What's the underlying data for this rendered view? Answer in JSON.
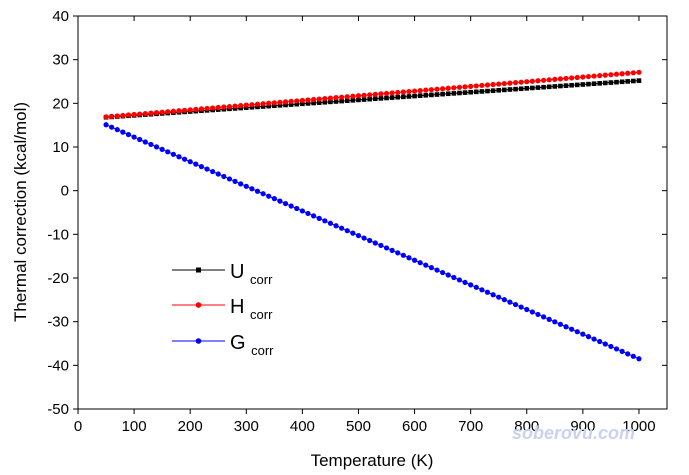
{
  "chart_data": {
    "type": "scatter",
    "title": "",
    "xlabel": "Temperature (K)",
    "ylabel": "Thermal correction (kcal/mol)",
    "xlim": [
      0,
      1050
    ],
    "ylim": [
      -50,
      40
    ],
    "x_ticks": [
      0,
      100,
      200,
      300,
      400,
      500,
      600,
      700,
      800,
      900,
      1000
    ],
    "y_ticks": [
      -50,
      -40,
      -30,
      -20,
      -10,
      0,
      10,
      20,
      30,
      40
    ],
    "x_tick_labels": [
      "0",
      "100",
      "200",
      "300",
      "400",
      "500",
      "600",
      "700",
      "800",
      "900",
      "1000"
    ],
    "y_tick_labels": [
      "-50",
      "-40",
      "-30",
      "-20",
      "-10",
      "0",
      "10",
      "20",
      "30",
      "40"
    ],
    "x": {
      "start": 50,
      "end": 1000,
      "step": 10
    },
    "grid": false,
    "legend_position": "lower-left",
    "series": [
      {
        "name": "U",
        "subscript": "corr",
        "color": "#000000",
        "marker": "square",
        "y_start": 16.8,
        "y_end": 25.2,
        "shape": "linear"
      },
      {
        "name": "H",
        "subscript": "corr",
        "color": "#ff0000",
        "marker": "circle",
        "y_start": 16.9,
        "y_end": 27.1,
        "shape": "linear"
      },
      {
        "name": "G",
        "subscript": "corr",
        "color": "#0000ff",
        "marker": "circle",
        "y_start": 15.1,
        "y_end": -38.5,
        "shape": "linear"
      }
    ]
  },
  "watermark": "soberovu.com"
}
